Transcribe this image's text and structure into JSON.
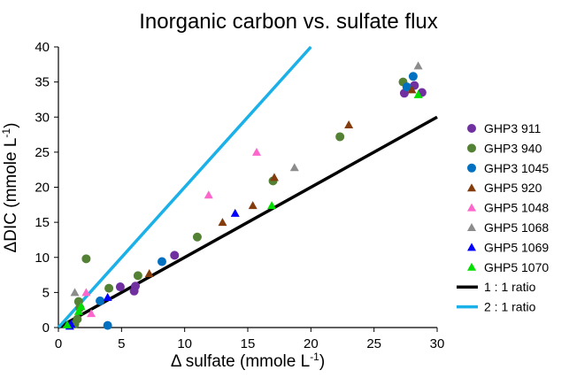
{
  "chart_data": {
    "type": "scatter",
    "title": "Inorganic carbon vs. sulfate flux",
    "xlabel": {
      "prefix": "Δ sulfate (mmole L",
      "sup": "-1",
      "suffix": ")"
    },
    "ylabel": {
      "prefix": "ΔDIC (mmole L",
      "sup": "-1",
      "suffix": ")"
    },
    "xlim": [
      0,
      30
    ],
    "ylim": [
      0,
      40
    ],
    "x_ticks": [
      "0",
      "5",
      "10",
      "15",
      "20",
      "25",
      "30"
    ],
    "y_ticks": [
      "0",
      "5",
      "10",
      "15",
      "20",
      "25",
      "30",
      "35",
      "40"
    ],
    "grid": false,
    "legend_position": "right",
    "series": [
      {
        "name": "GHP3 911",
        "marker": "circle",
        "color": "#7030A0",
        "points": [
          [
            4.9,
            5.8
          ],
          [
            6.0,
            5.2
          ],
          [
            6.1,
            5.9
          ],
          [
            9.2,
            10.3
          ],
          [
            27.4,
            33.4
          ],
          [
            28.2,
            34.5
          ],
          [
            28.8,
            33.5
          ]
        ]
      },
      {
        "name": "GHP3 940",
        "marker": "circle",
        "color": "#548235",
        "points": [
          [
            1.3,
            0.5
          ],
          [
            1.6,
            3.7
          ],
          [
            1.7,
            2.8
          ],
          [
            1.5,
            1.2
          ],
          [
            2.2,
            9.8
          ],
          [
            4.0,
            5.6
          ],
          [
            6.3,
            7.4
          ],
          [
            11.0,
            12.9
          ],
          [
            17.0,
            20.9
          ],
          [
            22.3,
            27.2
          ],
          [
            27.3,
            35.0
          ]
        ]
      },
      {
        "name": "GHP3 1045",
        "marker": "circle",
        "color": "#0070C0",
        "points": [
          [
            3.3,
            3.8
          ],
          [
            3.9,
            0.3
          ],
          [
            8.2,
            9.4
          ],
          [
            27.6,
            34.3
          ],
          [
            28.1,
            35.8
          ]
        ]
      },
      {
        "name": "GHP5 920",
        "marker": "triangle",
        "color": "#843C0C",
        "points": [
          [
            7.2,
            7.7
          ],
          [
            13.0,
            15.0
          ],
          [
            15.4,
            17.4
          ],
          [
            17.1,
            21.4
          ],
          [
            23.0,
            28.9
          ],
          [
            28.0,
            33.9
          ]
        ]
      },
      {
        "name": "GHP5 1048",
        "marker": "triangle",
        "color": "#FF66CC",
        "points": [
          [
            2.2,
            5.0
          ],
          [
            2.6,
            2.0
          ],
          [
            11.9,
            18.9
          ],
          [
            15.7,
            25.0
          ]
        ]
      },
      {
        "name": "GHP5 1068",
        "marker": "triangle",
        "color": "#8C8C8C",
        "points": [
          [
            1.3,
            5.0
          ],
          [
            18.7,
            22.8
          ],
          [
            28.5,
            37.3
          ]
        ]
      },
      {
        "name": "GHP5 1069",
        "marker": "triangle",
        "color": "#0000FF",
        "points": [
          [
            0.9,
            0.2
          ],
          [
            1.0,
            0.5
          ],
          [
            3.9,
            4.3
          ],
          [
            14.0,
            16.3
          ]
        ]
      },
      {
        "name": "GHP5 1070",
        "marker": "triangle",
        "color": "#00E000",
        "points": [
          [
            0.7,
            0.4
          ],
          [
            1.8,
            3.0
          ],
          [
            1.6,
            2.3
          ],
          [
            16.9,
            17.4
          ],
          [
            28.5,
            33.2
          ]
        ]
      }
    ],
    "reference_lines": [
      {
        "name": "1 : 1 ratio",
        "slope": 1,
        "color": "#000000"
      },
      {
        "name": "2 : 1 ratio",
        "slope": 2,
        "color": "#1AB0E8"
      }
    ]
  }
}
